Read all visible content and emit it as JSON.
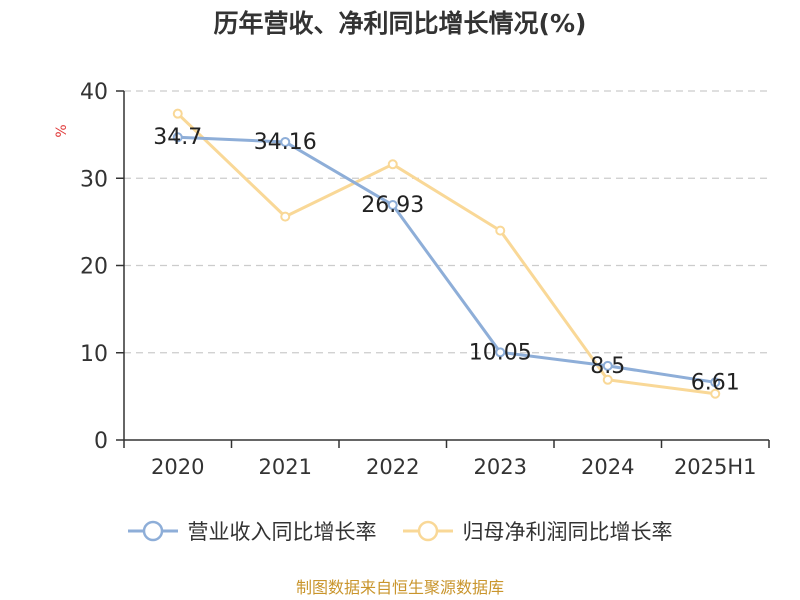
{
  "title": "历年营收、净利同比增长情况(%)",
  "source": "制图数据来自恒生聚源数据库",
  "colors": {
    "revenue": "#8eaed8",
    "profit": "#f9d897",
    "axis": "#333333",
    "grid": "#cccccc",
    "unit": "#e03c3c"
  },
  "chart_data": {
    "type": "line",
    "title": "历年营收、净利同比增长情况(%)",
    "ylabel": "%",
    "ylim": [
      0,
      40
    ],
    "yticks": [
      "0",
      "10",
      "20",
      "30",
      "40"
    ],
    "categories": [
      "2020",
      "2021",
      "2022",
      "2023",
      "2024",
      "2025H1"
    ],
    "grid": true,
    "legend_position": "bottom",
    "series": [
      {
        "name": "营业收入同比增长率",
        "values": [
          34.7,
          34.16,
          26.93,
          10.05,
          8.5,
          6.61
        ],
        "labels": [
          "34.7",
          "34.16",
          "26.93",
          "10.05",
          "8.5",
          "6.61"
        ]
      },
      {
        "name": "归母净利润同比增长率",
        "values": [
          37.4,
          25.6,
          31.6,
          24.0,
          6.9,
          5.3
        ]
      }
    ]
  }
}
